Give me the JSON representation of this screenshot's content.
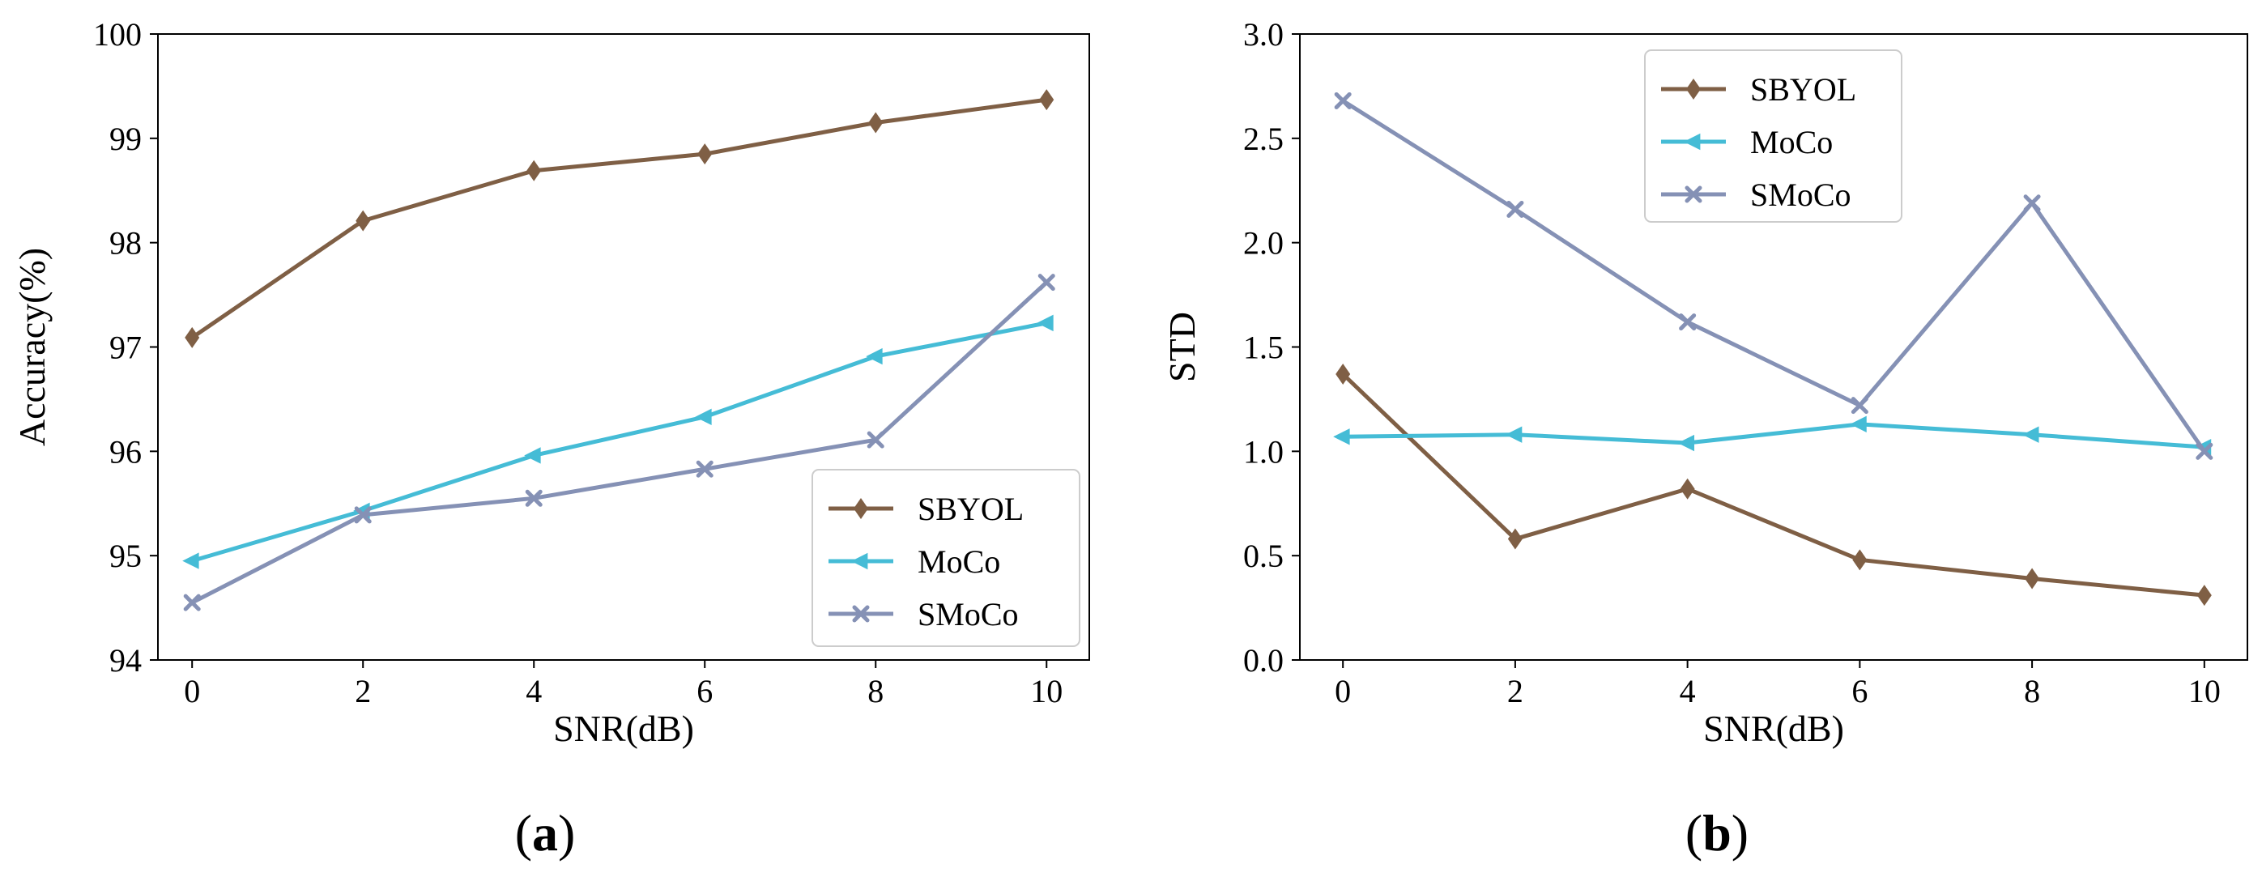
{
  "figure": {
    "panel_labels": [
      {
        "open": "(",
        "letter": "a",
        "close": ")"
      },
      {
        "open": "(",
        "letter": "b",
        "close": ")"
      }
    ]
  },
  "chart_data": [
    {
      "type": "line",
      "x": [
        0,
        2,
        4,
        6,
        8,
        10
      ],
      "xlabel": "SNR(dB)",
      "ylabel": "Accuracy(%)",
      "xlim": [
        -0.4,
        10.5
      ],
      "ylim": [
        94,
        100
      ],
      "xticks": [
        "0",
        "2",
        "4",
        "6",
        "8",
        "10"
      ],
      "yticks": [
        "94",
        "95",
        "96",
        "97",
        "98",
        "99",
        "100"
      ],
      "legend_position": "lower-right",
      "series": [
        {
          "name": "SBYOL",
          "color": "#7f5f45",
          "marker": "diamond",
          "values": [
            97.09,
            98.21,
            98.69,
            98.85,
            99.15,
            99.37
          ]
        },
        {
          "name": "MoCo",
          "color": "#45bcd6",
          "marker": "left-triangle",
          "values": [
            94.95,
            95.43,
            95.96,
            96.33,
            96.91,
            97.23
          ]
        },
        {
          "name": "SMoCo",
          "color": "#8591b5",
          "marker": "x",
          "values": [
            94.55,
            95.39,
            95.55,
            95.83,
            96.11,
            97.62
          ]
        }
      ]
    },
    {
      "type": "line",
      "x": [
        0,
        2,
        4,
        6,
        8,
        10
      ],
      "xlabel": "SNR(dB)",
      "ylabel": "STD",
      "xlim": [
        -0.5,
        10.5
      ],
      "ylim": [
        0,
        3.0
      ],
      "xticks": [
        "0",
        "2",
        "4",
        "6",
        "8",
        "10"
      ],
      "yticks": [
        "0.0",
        "0.5",
        "1.0",
        "1.5",
        "2.0",
        "2.5",
        "3.0"
      ],
      "legend_position": "upper-center",
      "series": [
        {
          "name": "SBYOL",
          "color": "#7f5f45",
          "marker": "diamond",
          "values": [
            1.37,
            0.58,
            0.82,
            0.48,
            0.39,
            0.31
          ]
        },
        {
          "name": "MoCo",
          "color": "#45bcd6",
          "marker": "left-triangle",
          "values": [
            1.07,
            1.08,
            1.04,
            1.13,
            1.08,
            1.02
          ]
        },
        {
          "name": "SMoCo",
          "color": "#8591b5",
          "marker": "x",
          "values": [
            2.68,
            2.16,
            1.62,
            1.22,
            2.19,
            1.0
          ]
        }
      ]
    }
  ]
}
